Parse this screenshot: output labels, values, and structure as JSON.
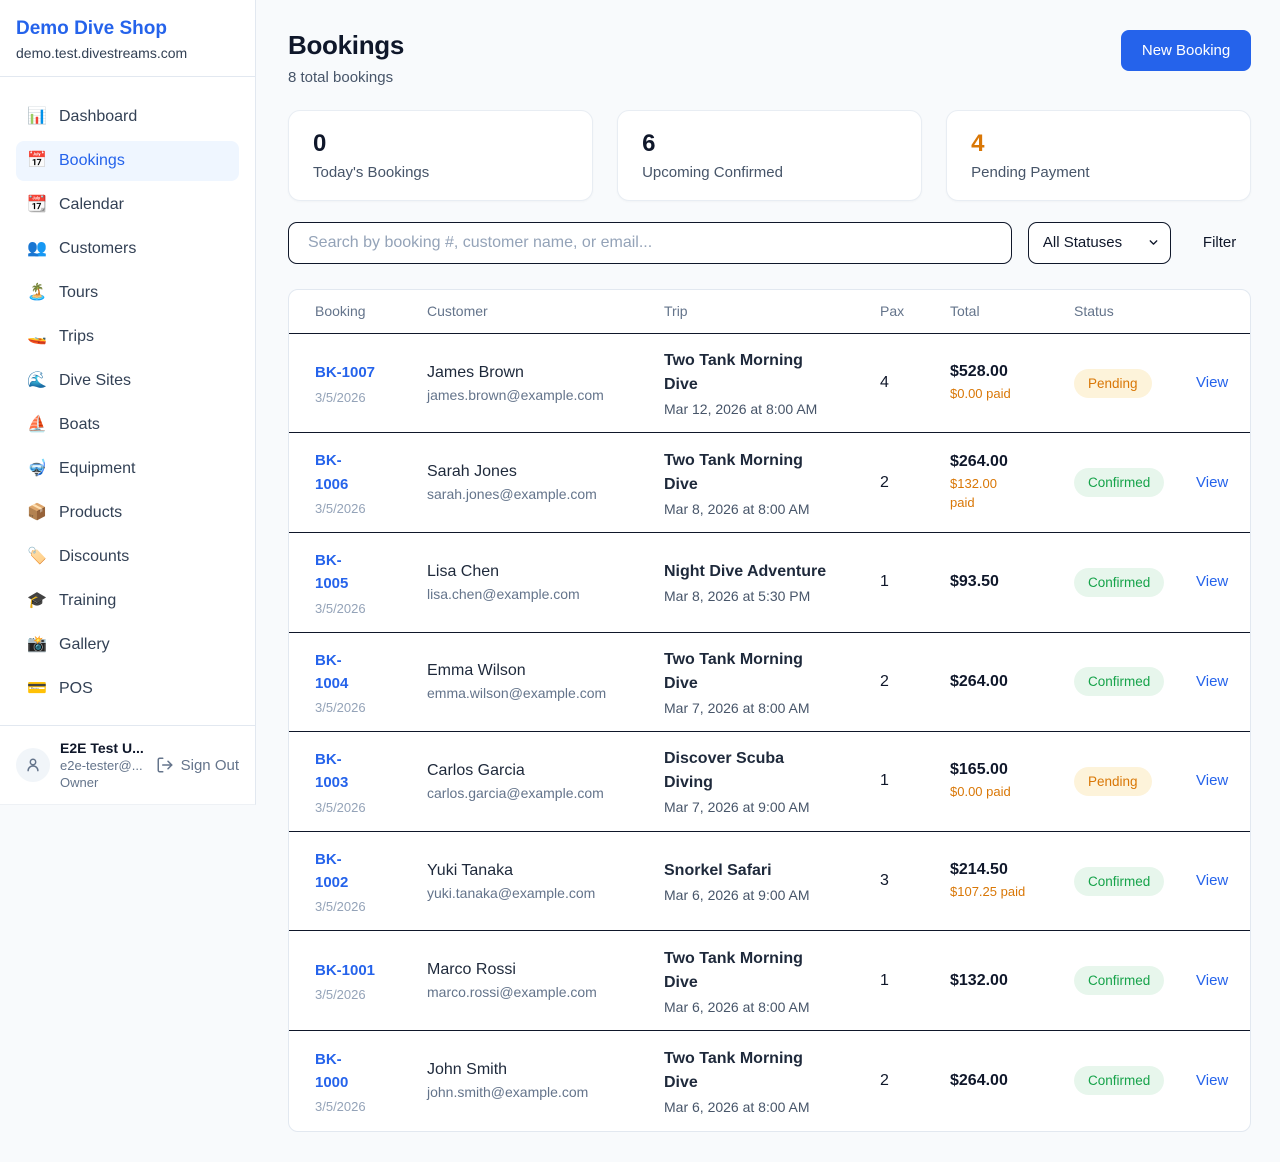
{
  "colors": {
    "accent_blue": "#2563eb",
    "pending_orange": "#d97706",
    "confirmed_green": "#16a34a",
    "page_background": "#f8fafc"
  },
  "sidebar": {
    "brand": {
      "name": "Demo Dive Shop",
      "domain": "demo.test.divestreams.com"
    },
    "items": [
      {
        "label": "Dashboard",
        "emoji": "📊",
        "icon_name": "bar-chart-icon",
        "active": false
      },
      {
        "label": "Bookings",
        "emoji": "📅",
        "icon_name": "calendar-icon",
        "active": true
      },
      {
        "label": "Calendar",
        "emoji": "📆",
        "icon_name": "tear-off-calendar-icon",
        "active": false
      },
      {
        "label": "Customers",
        "emoji": "👥",
        "icon_name": "people-icon",
        "active": false
      },
      {
        "label": "Tours",
        "emoji": "🏝️",
        "icon_name": "island-icon",
        "active": false
      },
      {
        "label": "Trips",
        "emoji": "🚤",
        "icon_name": "speedboat-icon",
        "active": false
      },
      {
        "label": "Dive Sites",
        "emoji": "🌊",
        "icon_name": "wave-icon",
        "active": false
      },
      {
        "label": "Boats",
        "emoji": "⛵",
        "icon_name": "sailboat-icon",
        "active": false
      },
      {
        "label": "Equipment",
        "emoji": "🤿",
        "icon_name": "diving-mask-icon",
        "active": false
      },
      {
        "label": "Products",
        "emoji": "📦",
        "icon_name": "package-icon",
        "active": false
      },
      {
        "label": "Discounts",
        "emoji": "🏷️",
        "icon_name": "label-tag-icon",
        "active": false
      },
      {
        "label": "Training",
        "emoji": "🎓",
        "icon_name": "graduation-cap-icon",
        "active": false
      },
      {
        "label": "Gallery",
        "emoji": "📸",
        "icon_name": "camera-icon",
        "active": false
      },
      {
        "label": "POS",
        "emoji": "💳",
        "icon_name": "credit-card-icon",
        "active": false
      }
    ],
    "user": {
      "name": "E2E Test U...",
      "email": "e2e-tester@...",
      "role": "Owner",
      "sign_out_label": "Sign Out"
    }
  },
  "header": {
    "title": "Bookings",
    "subtitle": "8 total bookings",
    "new_booking_label": "New Booking"
  },
  "stats": [
    {
      "value": "0",
      "label": "Today's Bookings",
      "value_color": "#0f172a"
    },
    {
      "value": "6",
      "label": "Upcoming Confirmed",
      "value_color": "#0f172a"
    },
    {
      "value": "4",
      "label": "Pending Payment",
      "value_color": "#d97706"
    }
  ],
  "controls": {
    "search_placeholder": "Search by booking #, customer name, or email...",
    "search_value": "",
    "status_filter_selected": "All Statuses",
    "filter_label": "Filter"
  },
  "table": {
    "columns": [
      "Booking",
      "Customer",
      "Trip",
      "Pax",
      "Total",
      "Status"
    ],
    "view_label": "View",
    "rows": [
      {
        "id": "BK-1007",
        "date": "3/5/2026",
        "customer": "James Brown",
        "email": "james.brown@example.com",
        "trip": "Two Tank Morning\nDive",
        "trip_datetime": "Mar 12, 2026 at 8:00 AM",
        "pax": "4",
        "total": "$528.00",
        "paid": "$0.00 paid",
        "status": "Pending"
      },
      {
        "id": "BK-\n1006",
        "date": "3/5/2026",
        "customer": "Sarah Jones",
        "email": "sarah.jones@example.com",
        "trip": "Two Tank Morning\nDive",
        "trip_datetime": "Mar 8, 2026 at 8:00 AM",
        "pax": "2",
        "total": "$264.00",
        "paid": "$132.00\npaid",
        "status": "Confirmed"
      },
      {
        "id": "BK-\n1005",
        "date": "3/5/2026",
        "customer": "Lisa Chen",
        "email": "lisa.chen@example.com",
        "trip": "Night Dive Adventure",
        "trip_datetime": "Mar 8, 2026 at 5:30 PM",
        "pax": "1",
        "total": "$93.50",
        "paid": "",
        "status": "Confirmed"
      },
      {
        "id": "BK-\n1004",
        "date": "3/5/2026",
        "customer": "Emma Wilson",
        "email": "emma.wilson@example.com",
        "trip": "Two Tank Morning\nDive",
        "trip_datetime": "Mar 7, 2026 at 8:00 AM",
        "pax": "2",
        "total": "$264.00",
        "paid": "",
        "status": "Confirmed"
      },
      {
        "id": "BK-\n1003",
        "date": "3/5/2026",
        "customer": "Carlos Garcia",
        "email": "carlos.garcia@example.com",
        "trip": "Discover Scuba\nDiving",
        "trip_datetime": "Mar 7, 2026 at 9:00 AM",
        "pax": "1",
        "total": "$165.00",
        "paid": "$0.00 paid",
        "status": "Pending"
      },
      {
        "id": "BK-\n1002",
        "date": "3/5/2026",
        "customer": "Yuki Tanaka",
        "email": "yuki.tanaka@example.com",
        "trip": "Snorkel Safari",
        "trip_datetime": "Mar 6, 2026 at 9:00 AM",
        "pax": "3",
        "total": "$214.50",
        "paid": "$107.25 paid",
        "status": "Confirmed"
      },
      {
        "id": "BK-1001",
        "date": "3/5/2026",
        "customer": "Marco Rossi",
        "email": "marco.rossi@example.com",
        "trip": "Two Tank Morning\nDive",
        "trip_datetime": "Mar 6, 2026 at 8:00 AM",
        "pax": "1",
        "total": "$132.00",
        "paid": "",
        "status": "Confirmed"
      },
      {
        "id": "BK-\n1000",
        "date": "3/5/2026",
        "customer": "John Smith",
        "email": "john.smith@example.com",
        "trip": "Two Tank Morning\nDive",
        "trip_datetime": "Mar 6, 2026 at 8:00 AM",
        "pax": "2",
        "total": "$264.00",
        "paid": "",
        "status": "Confirmed"
      }
    ]
  }
}
